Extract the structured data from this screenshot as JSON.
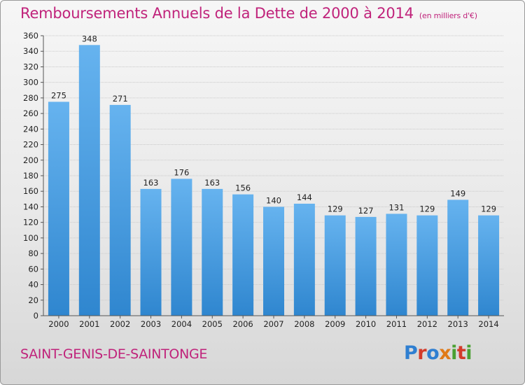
{
  "header": {
    "title": "Remboursements Annuels de la Dette de 2000 à 2014",
    "unit": "(en milliers d'€)"
  },
  "footer": {
    "city": "SAINT-GENIS-DE-SAINTONGE",
    "logo": "Proxiti",
    "logo_colors": [
      "#2f7fd1",
      "#e07a17",
      "#4aa032",
      "#d33b2a"
    ]
  },
  "colors": {
    "bar_top": "#66b3ef",
    "bar_bottom": "#2f86cf",
    "title": "#c0237b"
  },
  "chart_data": {
    "type": "bar",
    "categories": [
      "2000",
      "2001",
      "2002",
      "2003",
      "2004",
      "2005",
      "2006",
      "2007",
      "2008",
      "2009",
      "2010",
      "2011",
      "2012",
      "2013",
      "2014"
    ],
    "values": [
      275,
      348,
      271,
      163,
      176,
      163,
      156,
      140,
      144,
      129,
      127,
      131,
      129,
      149,
      129
    ],
    "ylim": [
      0,
      360
    ],
    "yticks": [
      0,
      20,
      40,
      60,
      80,
      100,
      120,
      140,
      160,
      180,
      200,
      220,
      240,
      260,
      280,
      300,
      320,
      340,
      360
    ],
    "grid": true
  }
}
